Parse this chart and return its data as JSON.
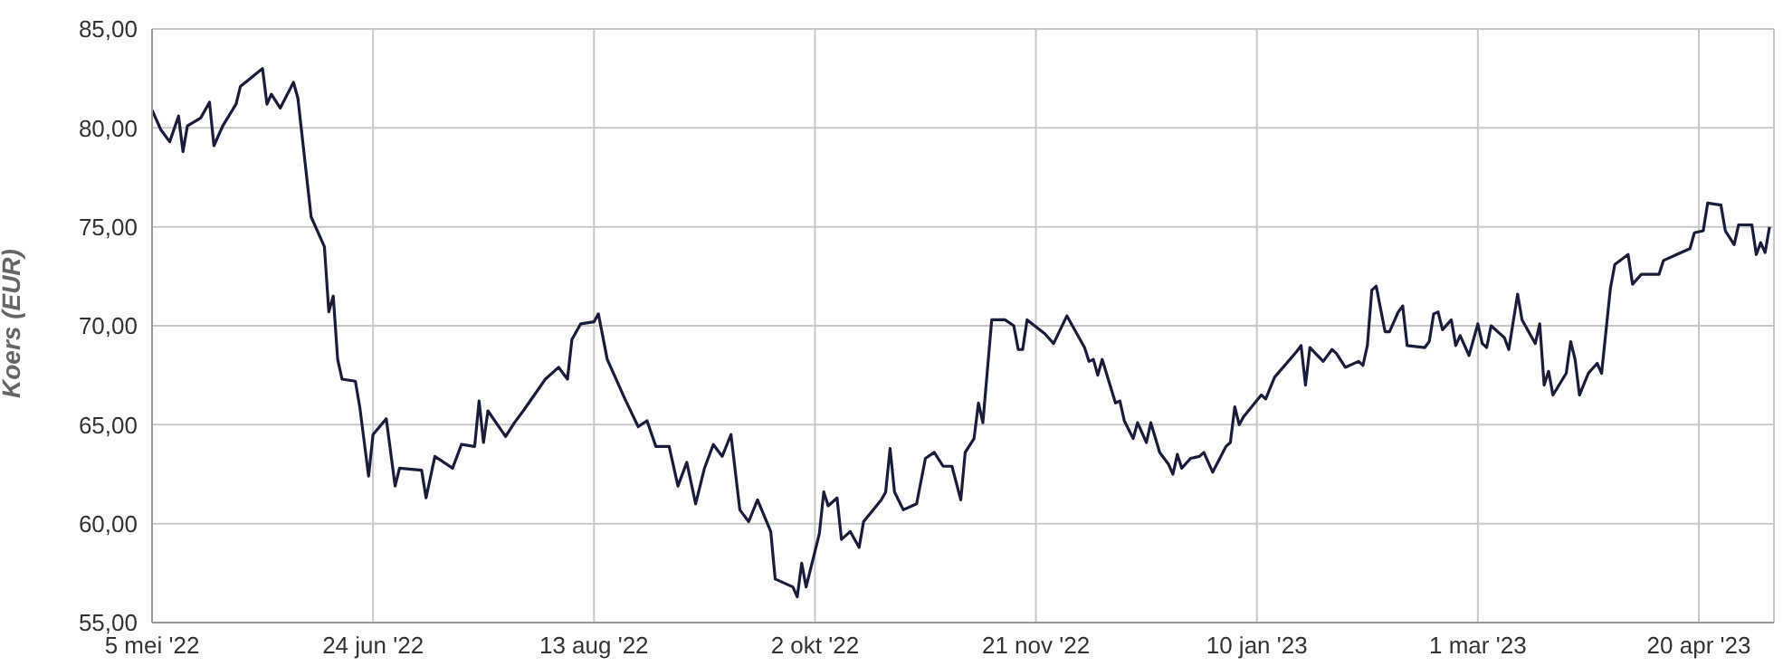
{
  "chart_data": {
    "type": "line",
    "ylabel": "Koers (EUR)",
    "x": [
      "2022-05-05",
      "2022-05-07",
      "2022-05-09",
      "2022-05-11",
      "2022-05-12",
      "2022-05-13",
      "2022-05-16",
      "2022-05-18",
      "2022-05-19",
      "2022-05-21",
      "2022-05-24",
      "2022-05-25",
      "2022-05-30",
      "2022-05-31",
      "2022-06-01",
      "2022-06-03",
      "2022-06-06",
      "2022-06-07",
      "2022-06-10",
      "2022-06-13",
      "2022-06-14",
      "2022-06-15",
      "2022-06-16",
      "2022-06-17",
      "2022-06-20",
      "2022-06-21",
      "2022-06-23",
      "2022-06-24",
      "2022-06-27",
      "2022-06-29",
      "2022-06-30",
      "2022-07-05",
      "2022-07-06",
      "2022-07-08",
      "2022-07-12",
      "2022-07-14",
      "2022-07-17",
      "2022-07-18",
      "2022-07-19",
      "2022-07-20",
      "2022-07-24",
      "2022-07-26",
      "2022-07-28",
      "2022-08-02",
      "2022-08-05",
      "2022-08-07",
      "2022-08-08",
      "2022-08-10",
      "2022-08-13",
      "2022-08-14",
      "2022-08-16",
      "2022-08-20",
      "2022-08-23",
      "2022-08-25",
      "2022-08-27",
      "2022-08-30",
      "2022-09-01",
      "2022-09-03",
      "2022-09-05",
      "2022-09-07",
      "2022-09-09",
      "2022-09-11",
      "2022-09-13",
      "2022-09-15",
      "2022-09-17",
      "2022-09-19",
      "2022-09-22",
      "2022-09-23",
      "2022-09-27",
      "2022-09-28",
      "2022-09-29",
      "2022-09-30",
      "2022-10-02",
      "2022-10-03",
      "2022-10-04",
      "2022-10-05",
      "2022-10-07",
      "2022-10-08",
      "2022-10-10",
      "2022-10-12",
      "2022-10-13",
      "2022-10-17",
      "2022-10-18",
      "2022-10-19",
      "2022-10-20",
      "2022-10-22",
      "2022-10-25",
      "2022-10-27",
      "2022-10-29",
      "2022-10-31",
      "2022-11-02",
      "2022-11-04",
      "2022-11-05",
      "2022-11-07",
      "2022-11-08",
      "2022-11-09",
      "2022-11-11",
      "2022-11-14",
      "2022-11-16",
      "2022-11-17",
      "2022-11-18",
      "2022-11-19",
      "2022-11-23",
      "2022-11-25",
      "2022-11-28",
      "2022-12-02",
      "2022-12-03",
      "2022-12-04",
      "2022-12-05",
      "2022-12-06",
      "2022-12-09",
      "2022-12-10",
      "2022-12-11",
      "2022-12-13",
      "2022-12-14",
      "2022-12-16",
      "2022-12-17",
      "2022-12-19",
      "2022-12-21",
      "2022-12-22",
      "2022-12-23",
      "2022-12-24",
      "2022-12-26",
      "2022-12-28",
      "2022-12-29",
      "2022-12-31",
      "2023-01-03",
      "2023-01-04",
      "2023-01-05",
      "2023-01-06",
      "2023-01-07",
      "2023-01-11",
      "2023-01-12",
      "2023-01-14",
      "2023-01-19",
      "2023-01-20",
      "2023-01-21",
      "2023-01-22",
      "2023-01-25",
      "2023-01-27",
      "2023-01-28",
      "2023-01-30",
      "2023-02-02",
      "2023-02-03",
      "2023-02-04",
      "2023-02-05",
      "2023-02-06",
      "2023-02-08",
      "2023-02-09",
      "2023-02-11",
      "2023-02-12",
      "2023-02-13",
      "2023-02-17",
      "2023-02-18",
      "2023-02-19",
      "2023-02-20",
      "2023-02-21",
      "2023-02-23",
      "2023-02-24",
      "2023-02-25",
      "2023-02-27",
      "2023-03-01",
      "2023-03-02",
      "2023-03-03",
      "2023-03-04",
      "2023-03-07",
      "2023-03-08",
      "2023-03-10",
      "2023-03-11",
      "2023-03-14",
      "2023-03-15",
      "2023-03-16",
      "2023-03-17",
      "2023-03-18",
      "2023-03-21",
      "2023-03-22",
      "2023-03-23",
      "2023-03-24",
      "2023-03-26",
      "2023-03-28",
      "2023-03-29",
      "2023-03-31",
      "2023-04-01",
      "2023-04-04",
      "2023-04-05",
      "2023-04-07",
      "2023-04-11",
      "2023-04-12",
      "2023-04-15",
      "2023-04-18",
      "2023-04-19",
      "2023-04-21",
      "2023-04-22",
      "2023-04-25",
      "2023-04-26",
      "2023-04-28",
      "2023-04-29",
      "2023-05-02",
      "2023-05-03",
      "2023-05-04",
      "2023-05-05",
      "2023-05-06"
    ],
    "series": [
      {
        "color": "#1a1d3a",
        "values": [
          80.9,
          79.9,
          79.3,
          80.6,
          78.8,
          80.1,
          80.5,
          81.3,
          79.1,
          80.1,
          81.2,
          82.1,
          83.0,
          81.2,
          81.7,
          81.0,
          82.3,
          81.5,
          75.5,
          74.0,
          70.7,
          71.5,
          68.3,
          67.3,
          67.2,
          65.9,
          62.4,
          64.5,
          65.3,
          61.9,
          62.8,
          62.7,
          61.3,
          63.4,
          62.8,
          64.0,
          63.9,
          66.2,
          64.1,
          65.7,
          64.4,
          65.1,
          65.7,
          67.3,
          67.9,
          67.3,
          69.3,
          70.1,
          70.2,
          70.6,
          68.3,
          66.3,
          64.9,
          65.2,
          63.9,
          63.9,
          61.9,
          63.1,
          61.0,
          62.8,
          64.0,
          63.4,
          64.5,
          60.7,
          60.1,
          61.2,
          59.6,
          57.2,
          56.8,
          56.3,
          58.0,
          56.8,
          58.6,
          59.5,
          61.6,
          60.9,
          61.3,
          59.2,
          59.6,
          58.8,
          60.1,
          61.2,
          61.6,
          63.8,
          61.6,
          60.7,
          61.0,
          63.3,
          63.6,
          62.9,
          62.9,
          61.2,
          63.6,
          64.3,
          66.1,
          65.1,
          70.3,
          70.3,
          70.0,
          68.8,
          68.8,
          70.3,
          69.6,
          69.1,
          70.5,
          68.9,
          68.2,
          68.3,
          67.5,
          68.3,
          66.1,
          66.2,
          65.2,
          64.3,
          65.1,
          64.1,
          65.1,
          63.6,
          63.0,
          62.5,
          63.5,
          62.8,
          63.3,
          63.4,
          63.6,
          62.6,
          63.9,
          64.1,
          65.9,
          65.0,
          65.4,
          66.5,
          66.3,
          67.4,
          68.7,
          69.0,
          67.0,
          68.9,
          68.2,
          68.8,
          68.6,
          67.9,
          68.2,
          68.0,
          69.0,
          71.8,
          72.0,
          69.7,
          69.7,
          70.7,
          71.0,
          69.0,
          68.9,
          69.2,
          70.6,
          70.7,
          69.8,
          70.3,
          69.0,
          69.5,
          68.5,
          70.1,
          69.1,
          68.9,
          70.0,
          69.4,
          68.8,
          71.6,
          70.3,
          69.1,
          70.1,
          67.0,
          67.7,
          66.5,
          67.6,
          69.2,
          68.3,
          66.5,
          67.6,
          68.1,
          67.6,
          71.9,
          73.1,
          73.6,
          72.1,
          72.6,
          72.6,
          73.3,
          73.6,
          73.9,
          74.7,
          74.8,
          76.2,
          76.1,
          74.8,
          74.1,
          75.1,
          75.1,
          73.6,
          74.2,
          73.7,
          75.0
        ]
      }
    ],
    "xlim": [
      "2022-05-05",
      "2023-05-07"
    ],
    "xticks": [
      {
        "value": "2022-05-05",
        "label": "5 mei '22"
      },
      {
        "value": "2022-06-24",
        "label": "24 jun '22"
      },
      {
        "value": "2022-08-13",
        "label": "13 aug '22"
      },
      {
        "value": "2022-10-02",
        "label": "2 okt '22"
      },
      {
        "value": "2022-11-21",
        "label": "21 nov '22"
      },
      {
        "value": "2023-01-10",
        "label": "10 jan '23"
      },
      {
        "value": "2023-03-01",
        "label": "1 mar '23"
      },
      {
        "value": "2023-04-20",
        "label": "20 apr '23"
      }
    ],
    "ylim": [
      55,
      85
    ],
    "yticks": [
      {
        "value": 55,
        "label": "55,00"
      },
      {
        "value": 60,
        "label": "60,00"
      },
      {
        "value": 65,
        "label": "65,00"
      },
      {
        "value": 70,
        "label": "70,00"
      },
      {
        "value": 75,
        "label": "75,00"
      },
      {
        "value": 80,
        "label": "80,00"
      },
      {
        "value": 85,
        "label": "85,00"
      }
    ],
    "grid": true,
    "legend": false,
    "marker": "none",
    "line_style": "solid"
  }
}
